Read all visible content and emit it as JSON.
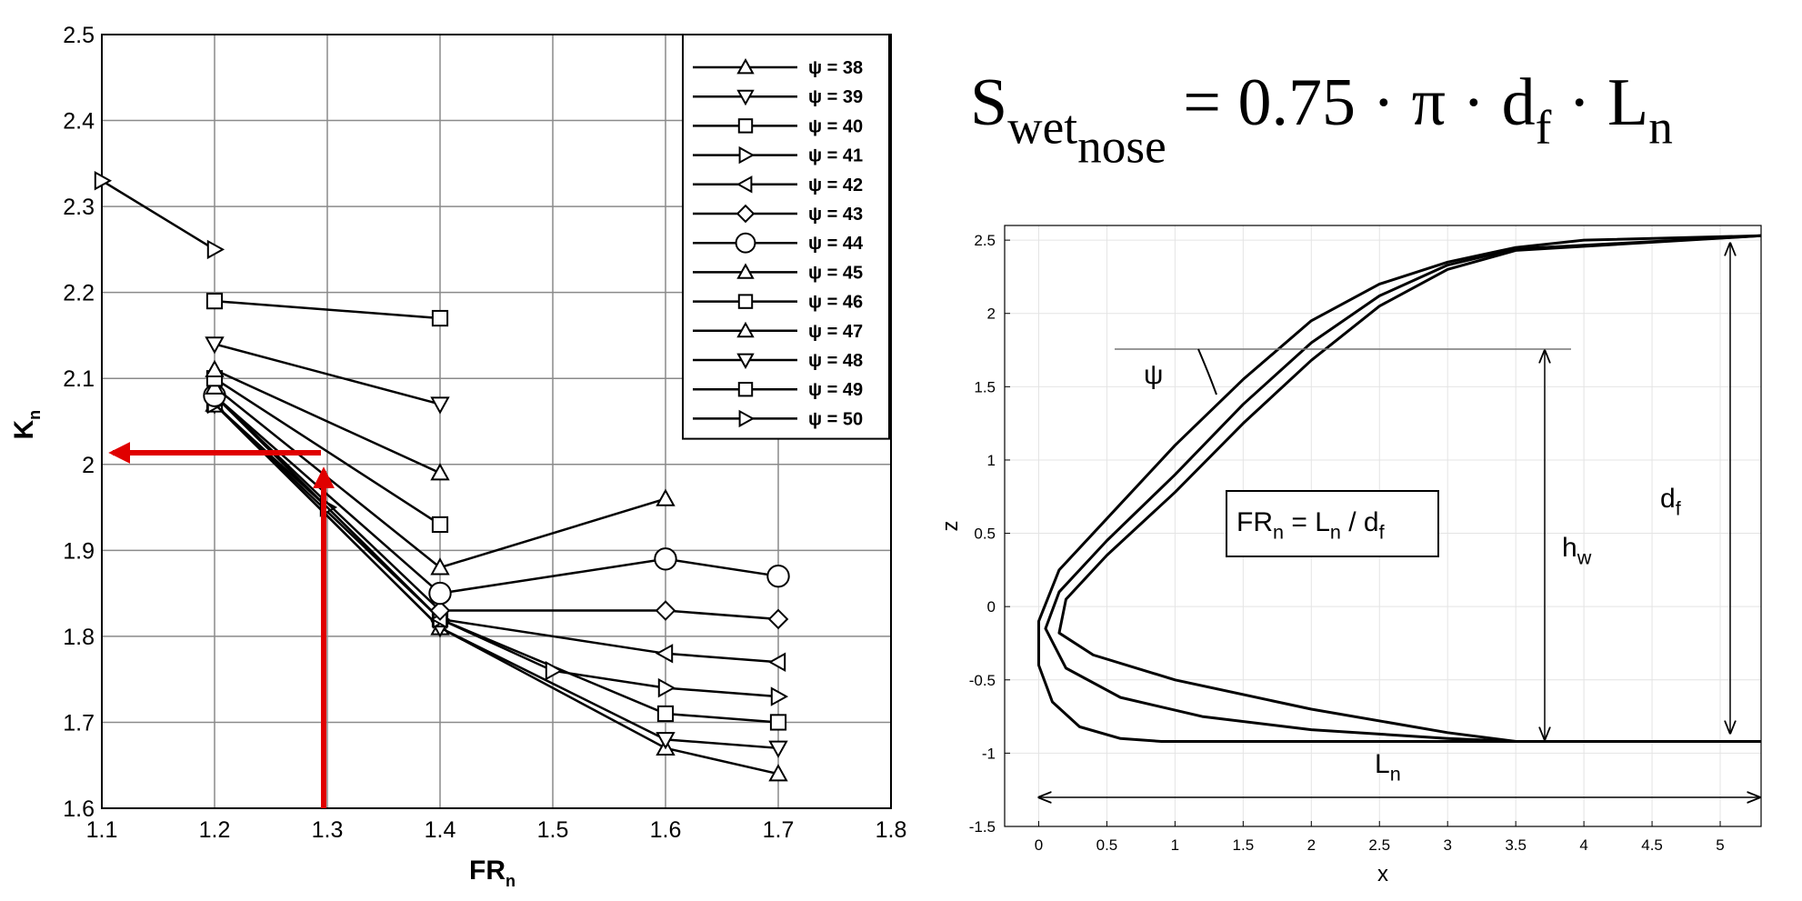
{
  "chart_data": [
    {
      "type": "line",
      "x_label": {
        "main": "FR",
        "sub": "n"
      },
      "y_label": {
        "main": "K",
        "sub": "n"
      },
      "xlim": [
        1.1,
        1.8
      ],
      "xticks": [
        1.1,
        1.2,
        1.3,
        1.4,
        1.5,
        1.6,
        1.7,
        1.8
      ],
      "ylim": [
        1.6,
        2.5
      ],
      "yticks": [
        1.6,
        1.7,
        1.8,
        1.9,
        2,
        2.1,
        2.2,
        2.3,
        2.4,
        2.5
      ],
      "grid": true,
      "legend": "upper right",
      "series": [
        {
          "name": "ψ = 38",
          "marker": "triangle-up",
          "color": "#000000",
          "x": [
            1.2,
            1.4,
            1.6,
            1.7
          ],
          "values": [
            2.07,
            1.81,
            1.67,
            1.64
          ]
        },
        {
          "name": "ψ = 39",
          "marker": "triangle-down",
          "color": "#000000",
          "x": [
            1.2,
            1.4,
            1.6,
            1.7
          ],
          "values": [
            2.07,
            1.81,
            1.68,
            1.67
          ]
        },
        {
          "name": "ψ = 40",
          "marker": "square",
          "color": "#000000",
          "x": [
            1.2,
            1.4,
            1.6,
            1.7
          ],
          "values": [
            2.07,
            1.82,
            1.71,
            1.7
          ]
        },
        {
          "name": "ψ = 41",
          "marker": "triangle-right",
          "color": "#000000",
          "x": [
            1.2,
            1.3,
            1.4,
            1.5,
            1.6,
            1.7
          ],
          "values": [
            2.07,
            1.95,
            1.82,
            1.76,
            1.74,
            1.73
          ]
        },
        {
          "name": "ψ = 42",
          "marker": "triangle-left",
          "color": "#000000",
          "x": [
            1.2,
            1.4,
            1.6,
            1.7
          ],
          "values": [
            2.08,
            1.82,
            1.78,
            1.77
          ]
        },
        {
          "name": "ψ = 43",
          "marker": "diamond",
          "color": "#000000",
          "x": [
            1.2,
            1.4,
            1.6,
            1.7
          ],
          "values": [
            2.08,
            1.83,
            1.83,
            1.82
          ]
        },
        {
          "name": "ψ = 44",
          "marker": "circle",
          "color": "#000000",
          "x": [
            1.2,
            1.4,
            1.6,
            1.7
          ],
          "values": [
            2.08,
            1.85,
            1.89,
            1.87
          ]
        },
        {
          "name": "ψ = 45",
          "marker": "triangle-up",
          "color": "#000000",
          "x": [
            1.2,
            1.4,
            1.6
          ],
          "values": [
            2.09,
            1.88,
            1.96
          ]
        },
        {
          "name": "ψ = 46",
          "marker": "square",
          "color": "#000000",
          "x": [
            1.2,
            1.4
          ],
          "values": [
            2.1,
            1.93
          ]
        },
        {
          "name": "ψ = 47",
          "marker": "triangle-up",
          "color": "#000000",
          "x": [
            1.2,
            1.4
          ],
          "values": [
            2.11,
            1.99
          ]
        },
        {
          "name": "ψ = 48",
          "marker": "triangle-down",
          "color": "#000000",
          "x": [
            1.2,
            1.4
          ],
          "values": [
            2.14,
            2.07
          ]
        },
        {
          "name": "ψ = 49",
          "marker": "square",
          "color": "#000000",
          "x": [
            1.2,
            1.4
          ],
          "values": [
            2.19,
            2.17
          ]
        },
        {
          "name": "ψ = 50",
          "marker": "triangle-right",
          "color": "#000000",
          "x": [
            1.1,
            1.2
          ],
          "values": [
            2.33,
            2.25
          ]
        }
      ]
    },
    {
      "type": "curve",
      "x_label": "x",
      "y_label": "z",
      "xlim": [
        -0.25,
        5.3
      ],
      "xticks": [
        0,
        0.5,
        1,
        1.5,
        2,
        2.5,
        3,
        3.5,
        4,
        4.5,
        5
      ],
      "ylim": [
        -1.5,
        2.6
      ],
      "yticks": [
        -1.5,
        -1,
        -0.5,
        0,
        0.5,
        1,
        1.5,
        2,
        2.5
      ],
      "grid": true,
      "series": [
        {
          "color": "#000000",
          "x": [
            5.3,
            4,
            3.5,
            3,
            2.5,
            2,
            1.5,
            1,
            0.5,
            0.15,
            0,
            0,
            0.1,
            0.3,
            0.6,
            0.9,
            2,
            3.5,
            5.3
          ],
          "values": [
            2.53,
            2.5,
            2.45,
            2.35,
            2.2,
            1.95,
            1.55,
            1.1,
            0.6,
            0.25,
            -0.1,
            -0.4,
            -0.65,
            -0.82,
            -0.9,
            -0.92,
            -0.92,
            -0.92,
            -0.92
          ]
        },
        {
          "color": "#000000",
          "x": [
            5.3,
            3.5,
            3,
            2.5,
            2,
            1.5,
            1,
            0.5,
            0.15,
            0.05,
            0.2,
            0.6,
            1.2,
            2,
            3,
            3.5,
            5.3
          ],
          "values": [
            2.53,
            2.44,
            2.33,
            2.12,
            1.8,
            1.38,
            0.9,
            0.45,
            0.1,
            -0.15,
            -0.42,
            -0.62,
            -0.75,
            -0.84,
            -0.9,
            -0.92,
            -0.92
          ]
        },
        {
          "color": "#000000",
          "x": [
            5.3,
            3.5,
            3,
            2.5,
            2,
            1.5,
            1,
            0.5,
            0.2,
            0.15,
            0.4,
            1,
            2,
            3,
            3.5,
            5.3
          ],
          "values": [
            2.53,
            2.43,
            2.3,
            2.05,
            1.68,
            1.25,
            0.78,
            0.35,
            0.05,
            -0.18,
            -0.33,
            -0.5,
            -0.7,
            -0.86,
            -0.92,
            -0.92
          ]
        }
      ],
      "annotations": {
        "psi": "ψ",
        "fr_box": [
          {
            "text": "FR"
          },
          {
            "text": "n",
            "sub": 1
          },
          {
            "text": " = L"
          },
          {
            "text": "n",
            "sub": 1
          },
          {
            "text": " / d"
          },
          {
            "text": "f",
            "sub": 1
          }
        ],
        "h_w": [
          {
            "text": "h"
          },
          {
            "text": "w",
            "sub": 1
          }
        ],
        "d_f": [
          {
            "text": "d"
          },
          {
            "text": "f",
            "sub": 1
          }
        ],
        "L_n": [
          {
            "text": "L"
          },
          {
            "text": "n",
            "sub": 1
          }
        ]
      }
    }
  ],
  "formula": [
    {
      "text": "S"
    },
    {
      "text": "wet",
      "sub": 1
    },
    {
      "text": "nose",
      "sub": 2
    },
    {
      "text": " = 0.75 · π · d"
    },
    {
      "text": "f",
      "sub": 1
    },
    {
      "text": " · L"
    },
    {
      "text": "n",
      "sub": 1
    }
  ]
}
